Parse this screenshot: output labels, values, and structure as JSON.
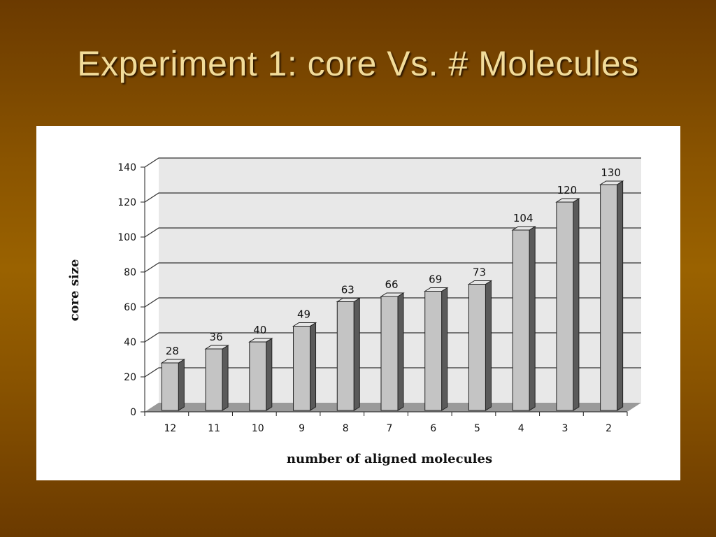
{
  "slide": {
    "title": "Experiment 1: core Vs. # Molecules"
  },
  "colors": {
    "bar_front": "#c4c4c4",
    "bar_side": "#5a5a5a",
    "bar_top": "#e6e6e6",
    "plot_bg": "#e8e8e8"
  },
  "chart_data": {
    "type": "bar",
    "title": "",
    "xlabel": "number of aligned molecules",
    "ylabel": "core size",
    "categories": [
      "12",
      "11",
      "10",
      "9",
      "8",
      "7",
      "6",
      "5",
      "4",
      "3",
      "2"
    ],
    "values": [
      28,
      36,
      40,
      49,
      63,
      66,
      69,
      73,
      104,
      120,
      130
    ],
    "ylim": [
      0,
      140
    ],
    "yticks": [
      0,
      20,
      40,
      60,
      80,
      100,
      120,
      140
    ],
    "grid": true,
    "style": "3d"
  }
}
